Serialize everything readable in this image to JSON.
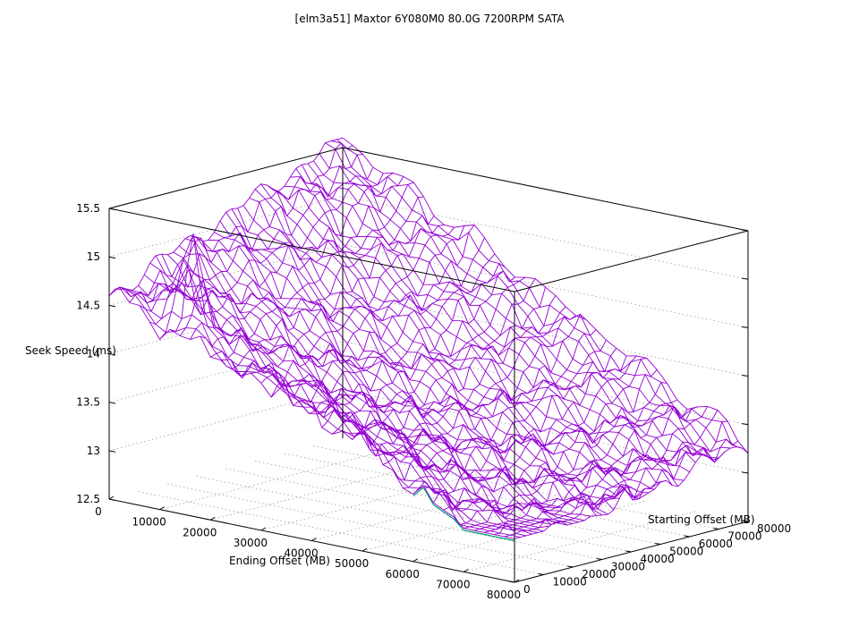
{
  "chart_data": {
    "type": "surface",
    "title": "[elm3a51] Maxtor 6Y080M0 80.0G 7200RPM SATA",
    "xlabel": "Ending Offset (MB)",
    "ylabel": "Starting Offset (MB)",
    "zlabel": "Seek Speed (ms)",
    "x_ticks": [
      "0",
      "10000",
      "20000",
      "30000",
      "40000",
      "50000",
      "60000",
      "70000",
      "80000"
    ],
    "y_ticks": [
      "0",
      "10000",
      "20000",
      "30000",
      "40000",
      "50000",
      "60000",
      "70000",
      "80000"
    ],
    "z_ticks": [
      "12.5",
      "13",
      "13.5",
      "14",
      "14.5",
      "15",
      "15.5"
    ],
    "xlim": [
      0,
      80000
    ],
    "ylim": [
      0,
      80000
    ],
    "zlim": [
      12.5,
      15.5
    ],
    "grid": true,
    "colors": {
      "mesh": "#9400d3",
      "underside": "#009e73",
      "grid": "#a0a0a0",
      "axis": "#000000"
    },
    "surface": {
      "description_note": "",
      "corner_values_ms": {
        "x0_y0": 14.6,
        "x80000_y0": 13.1,
        "x0_y80000": 15.6,
        "x80000_y80000": 13.3
      },
      "minimum_ms": 12.95,
      "spike": {
        "x": 12000,
        "y": 8000,
        "z": 15.3
      }
    }
  }
}
